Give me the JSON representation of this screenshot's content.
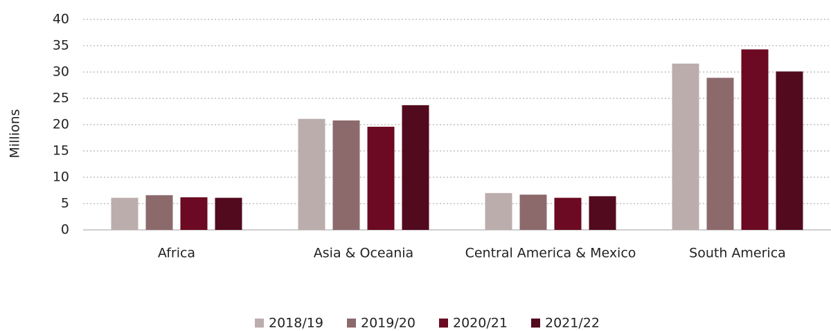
{
  "chart_data": {
    "type": "bar",
    "y_label": "Millions",
    "categories": [
      "Africa",
      "Asia & Oceania",
      "Central America & Mexico",
      "South America"
    ],
    "series": [
      {
        "name": "2018/19",
        "color": "#bcadad",
        "values": [
          6.1,
          21.1,
          7.0,
          31.6
        ]
      },
      {
        "name": "2019/20",
        "color": "#8c6a6c",
        "values": [
          6.6,
          20.8,
          6.7,
          28.9
        ]
      },
      {
        "name": "2020/21",
        "color": "#6b0a22",
        "values": [
          6.2,
          19.6,
          6.1,
          34.3
        ]
      },
      {
        "name": "2021/22",
        "color": "#520a1e",
        "values": [
          6.1,
          23.7,
          6.4,
          30.1
        ]
      }
    ],
    "ylim": [
      0,
      40
    ],
    "yticks": [
      0,
      5,
      10,
      15,
      20,
      25,
      30,
      35,
      40
    ],
    "grid": true,
    "legend": "bottom"
  }
}
